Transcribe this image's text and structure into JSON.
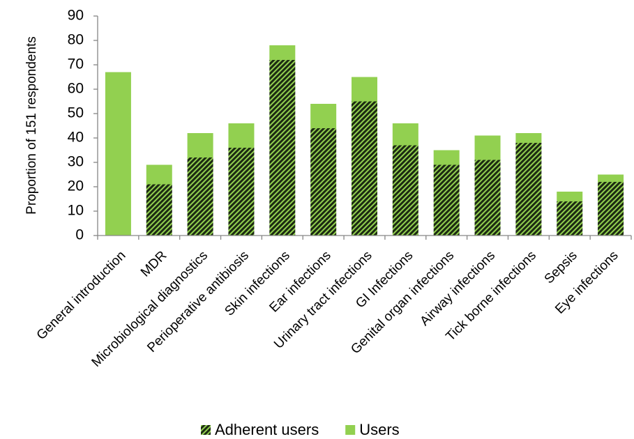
{
  "chart_data": {
    "type": "stacked_bar",
    "y_label": "Proportion of 151 respondents",
    "categories": [
      "General introduction",
      "MDR",
      "Microbiological diagnostics",
      "Perioperative antibiosis",
      "Skin infections",
      "Ear infections",
      "Urinary tract infections",
      "GI Infections",
      "Genital organ infections",
      "Airway infections",
      "Tick borne infections",
      "Sepsis",
      "Eye infections"
    ],
    "series": [
      {
        "name": "Adherent users",
        "color": "#92d050",
        "hatch": true,
        "values": [
          0,
          21,
          32,
          36,
          72,
          44,
          55,
          37,
          29,
          31,
          38,
          14,
          22
        ]
      },
      {
        "name": "Users",
        "color": "#92d050",
        "hatch": false,
        "values": [
          67,
          8,
          10,
          10,
          6,
          10,
          10,
          9,
          6,
          10,
          4,
          4,
          3
        ]
      }
    ],
    "ylim": [
      0,
      90
    ],
    "yticks": [
      0,
      10,
      20,
      30,
      40,
      50,
      60,
      70,
      80,
      90
    ],
    "grid": false,
    "legend": "bottom"
  }
}
